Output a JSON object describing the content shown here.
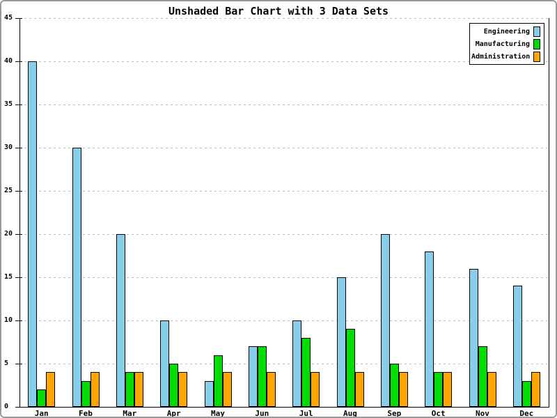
{
  "frame": {
    "background": "#FFFFFF",
    "border_color": "#9A9A9A"
  },
  "chart_data": {
    "type": "bar",
    "title": "Unshaded Bar Chart with 3 Data Sets",
    "categories": [
      "Jan",
      "Feb",
      "Mar",
      "Apr",
      "May",
      "Jun",
      "Jul",
      "Aug",
      "Sep",
      "Oct",
      "Nov",
      "Dec"
    ],
    "series": [
      {
        "name": "Engineering",
        "color": "#87CEEB",
        "values": [
          40,
          30,
          20,
          10,
          3,
          7,
          10,
          15,
          20,
          18,
          16,
          14
        ]
      },
      {
        "name": "Manufacturing",
        "color": "#00DD00",
        "values": [
          2,
          3,
          4,
          5,
          6,
          7,
          8,
          9,
          5,
          4,
          7,
          3
        ]
      },
      {
        "name": "Administration",
        "color": "#FFA500",
        "values": [
          4,
          4,
          4,
          4,
          4,
          4,
          4,
          4,
          4,
          4,
          4,
          4
        ]
      }
    ],
    "xlabel": "",
    "ylabel": "",
    "ylim": [
      0,
      45
    ],
    "yticks": [
      0,
      5,
      10,
      15,
      20,
      25,
      30,
      35,
      40,
      45
    ],
    "grid": "horizontal-dashed",
    "grid_color": "#BCBCBC",
    "axis_color": "#000000",
    "bar_outline_color": "#000000",
    "legend_position": "top-right"
  }
}
